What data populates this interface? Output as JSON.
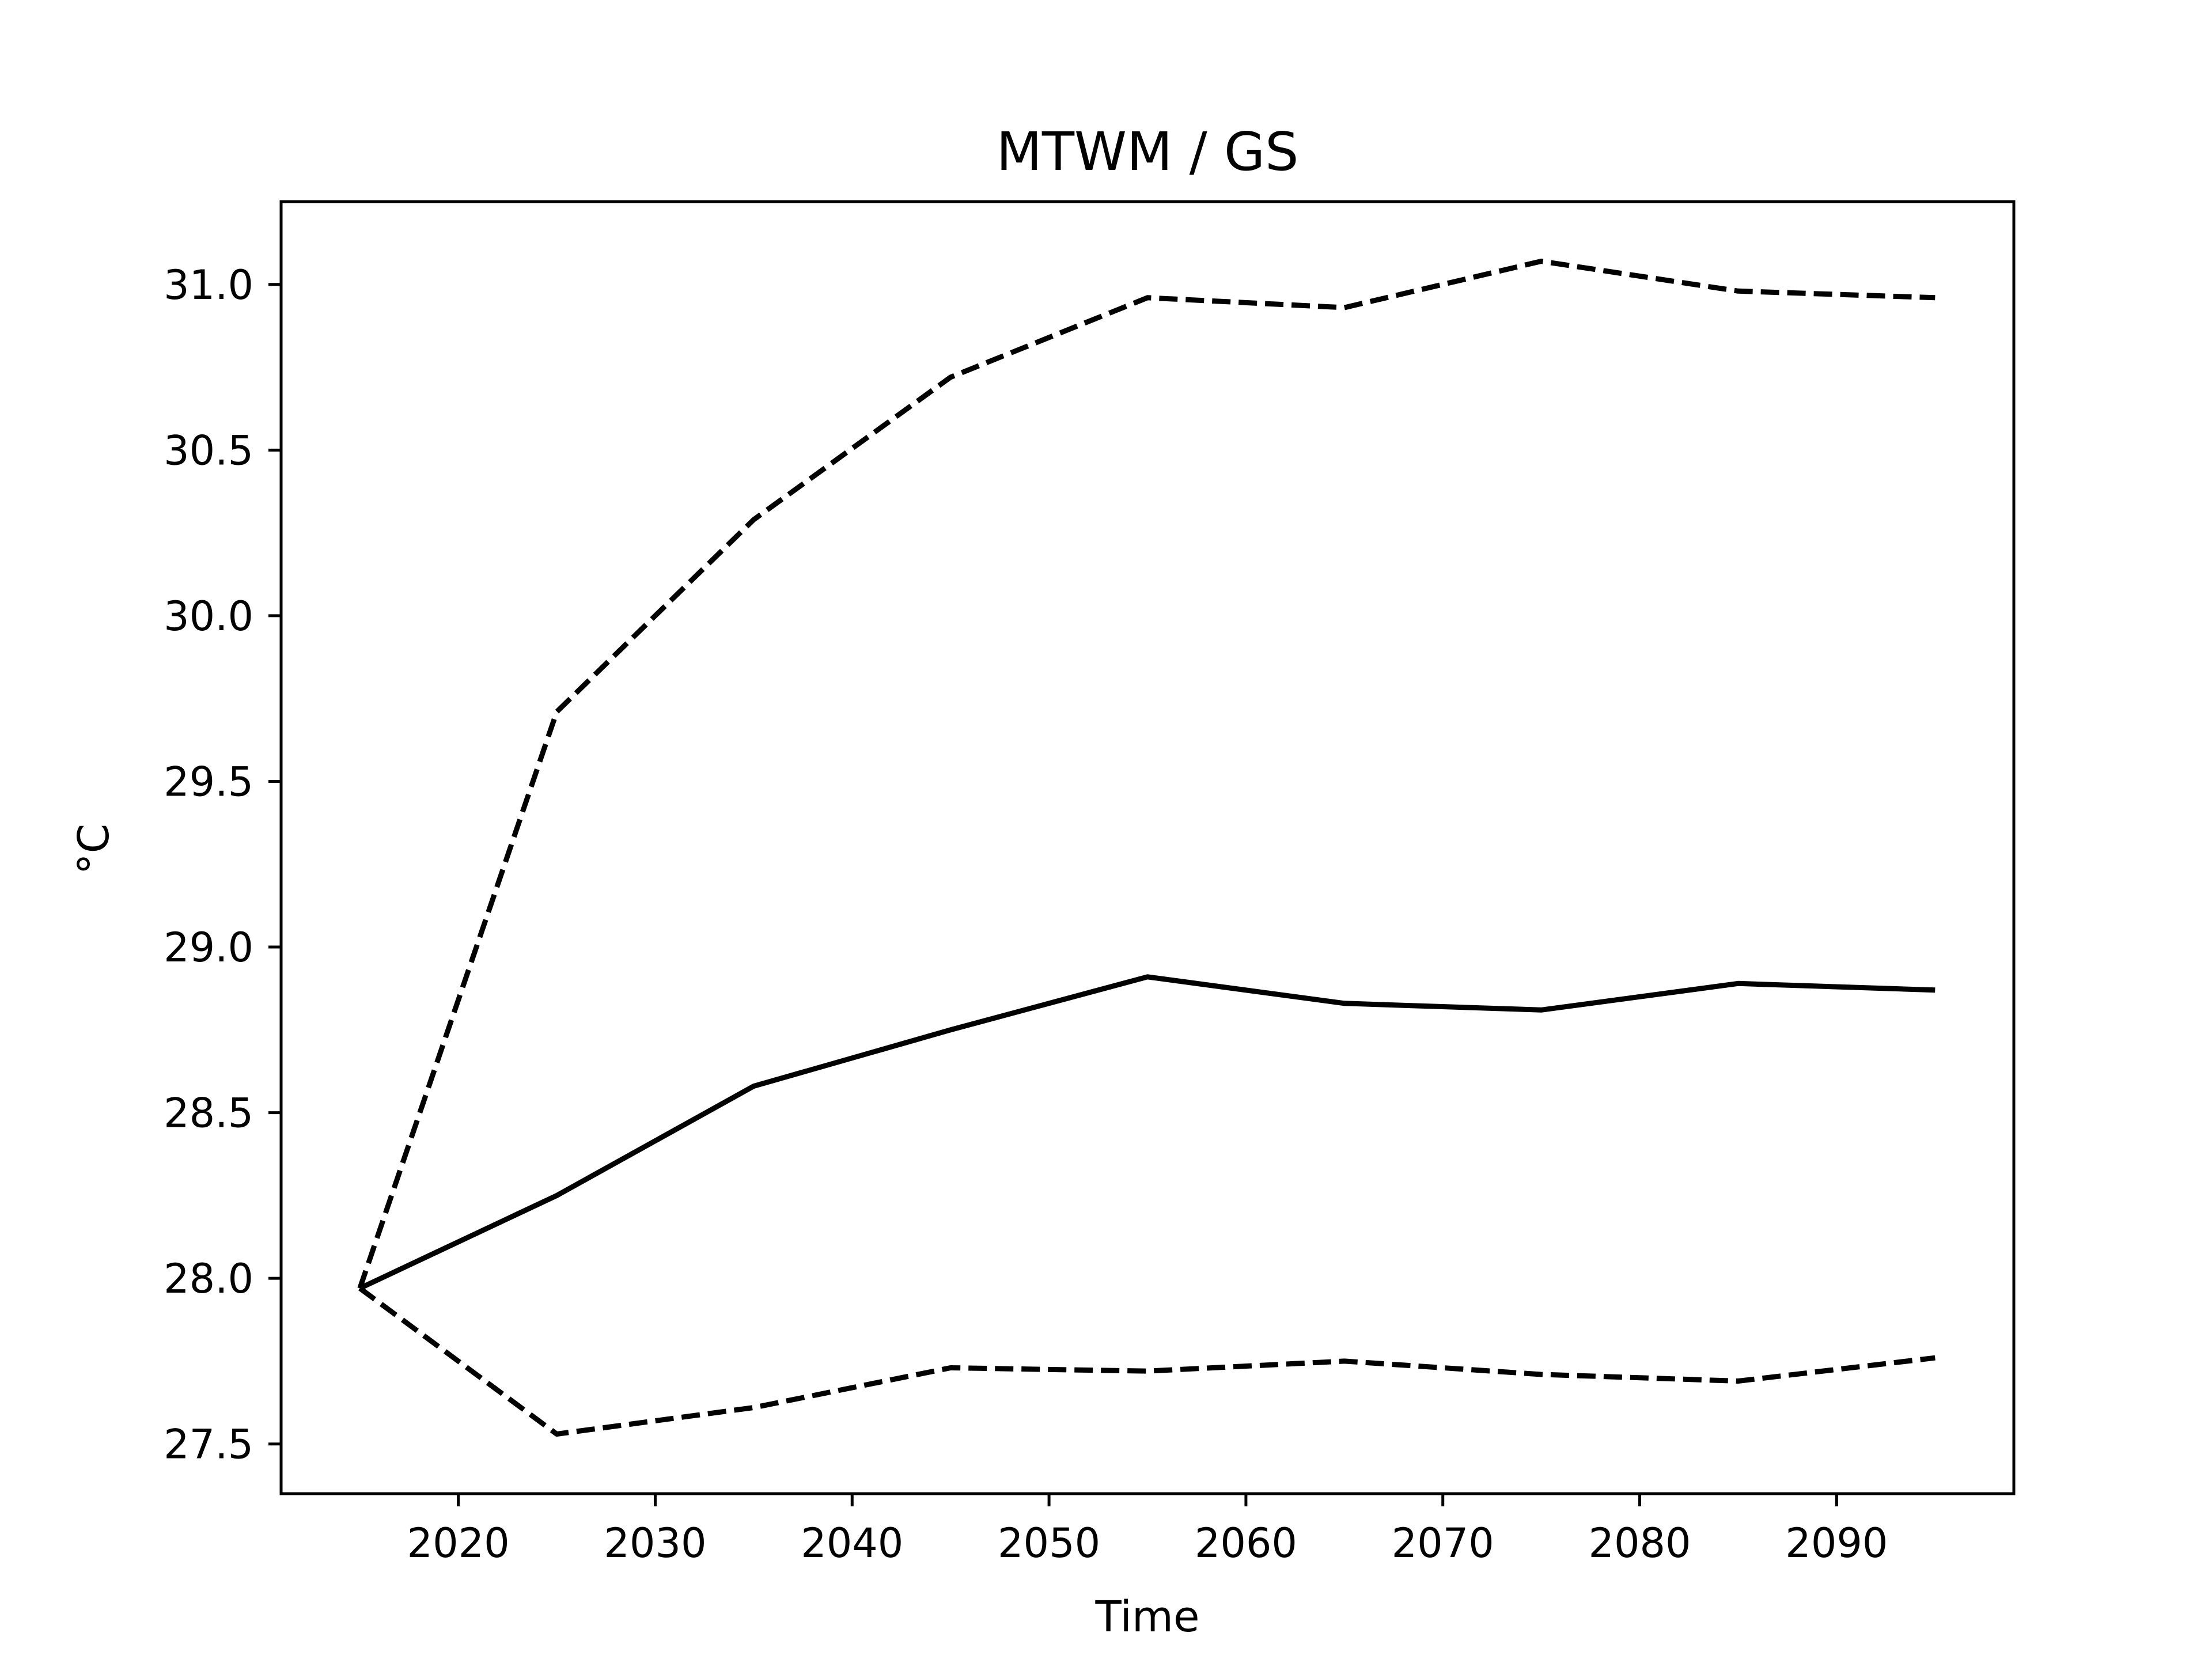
{
  "chart_data": {
    "type": "line",
    "title": "MTWM / GS",
    "xlabel": "Time",
    "ylabel": "°C",
    "xlim": [
      2011,
      2099
    ],
    "ylim": [
      27.35,
      31.25
    ],
    "xticks": [
      2020,
      2030,
      2040,
      2050,
      2060,
      2070,
      2080,
      2090
    ],
    "yticks": [
      27.5,
      28.0,
      28.5,
      29.0,
      29.5,
      30.0,
      30.5,
      31.0
    ],
    "ytick_labels": [
      "27.5",
      "28.0",
      "28.5",
      "29.0",
      "29.5",
      "30.0",
      "30.5",
      "31.0"
    ],
    "grid": false,
    "x": [
      2015,
      2025,
      2035,
      2045,
      2055,
      2065,
      2075,
      2085,
      2095
    ],
    "series": [
      {
        "style": "solid",
        "color": "#000000",
        "values": [
          27.97,
          28.25,
          28.58,
          28.75,
          28.91,
          28.83,
          28.81,
          28.89,
          28.87
        ]
      },
      {
        "style": "dashed",
        "color": "#000000",
        "values": [
          27.97,
          29.71,
          30.29,
          30.72,
          30.96,
          30.93,
          31.07,
          30.98,
          30.96
        ]
      },
      {
        "style": "dashed",
        "color": "#000000",
        "values": [
          27.97,
          27.53,
          27.61,
          27.73,
          27.72,
          27.75,
          27.71,
          27.69,
          27.76
        ]
      }
    ]
  }
}
